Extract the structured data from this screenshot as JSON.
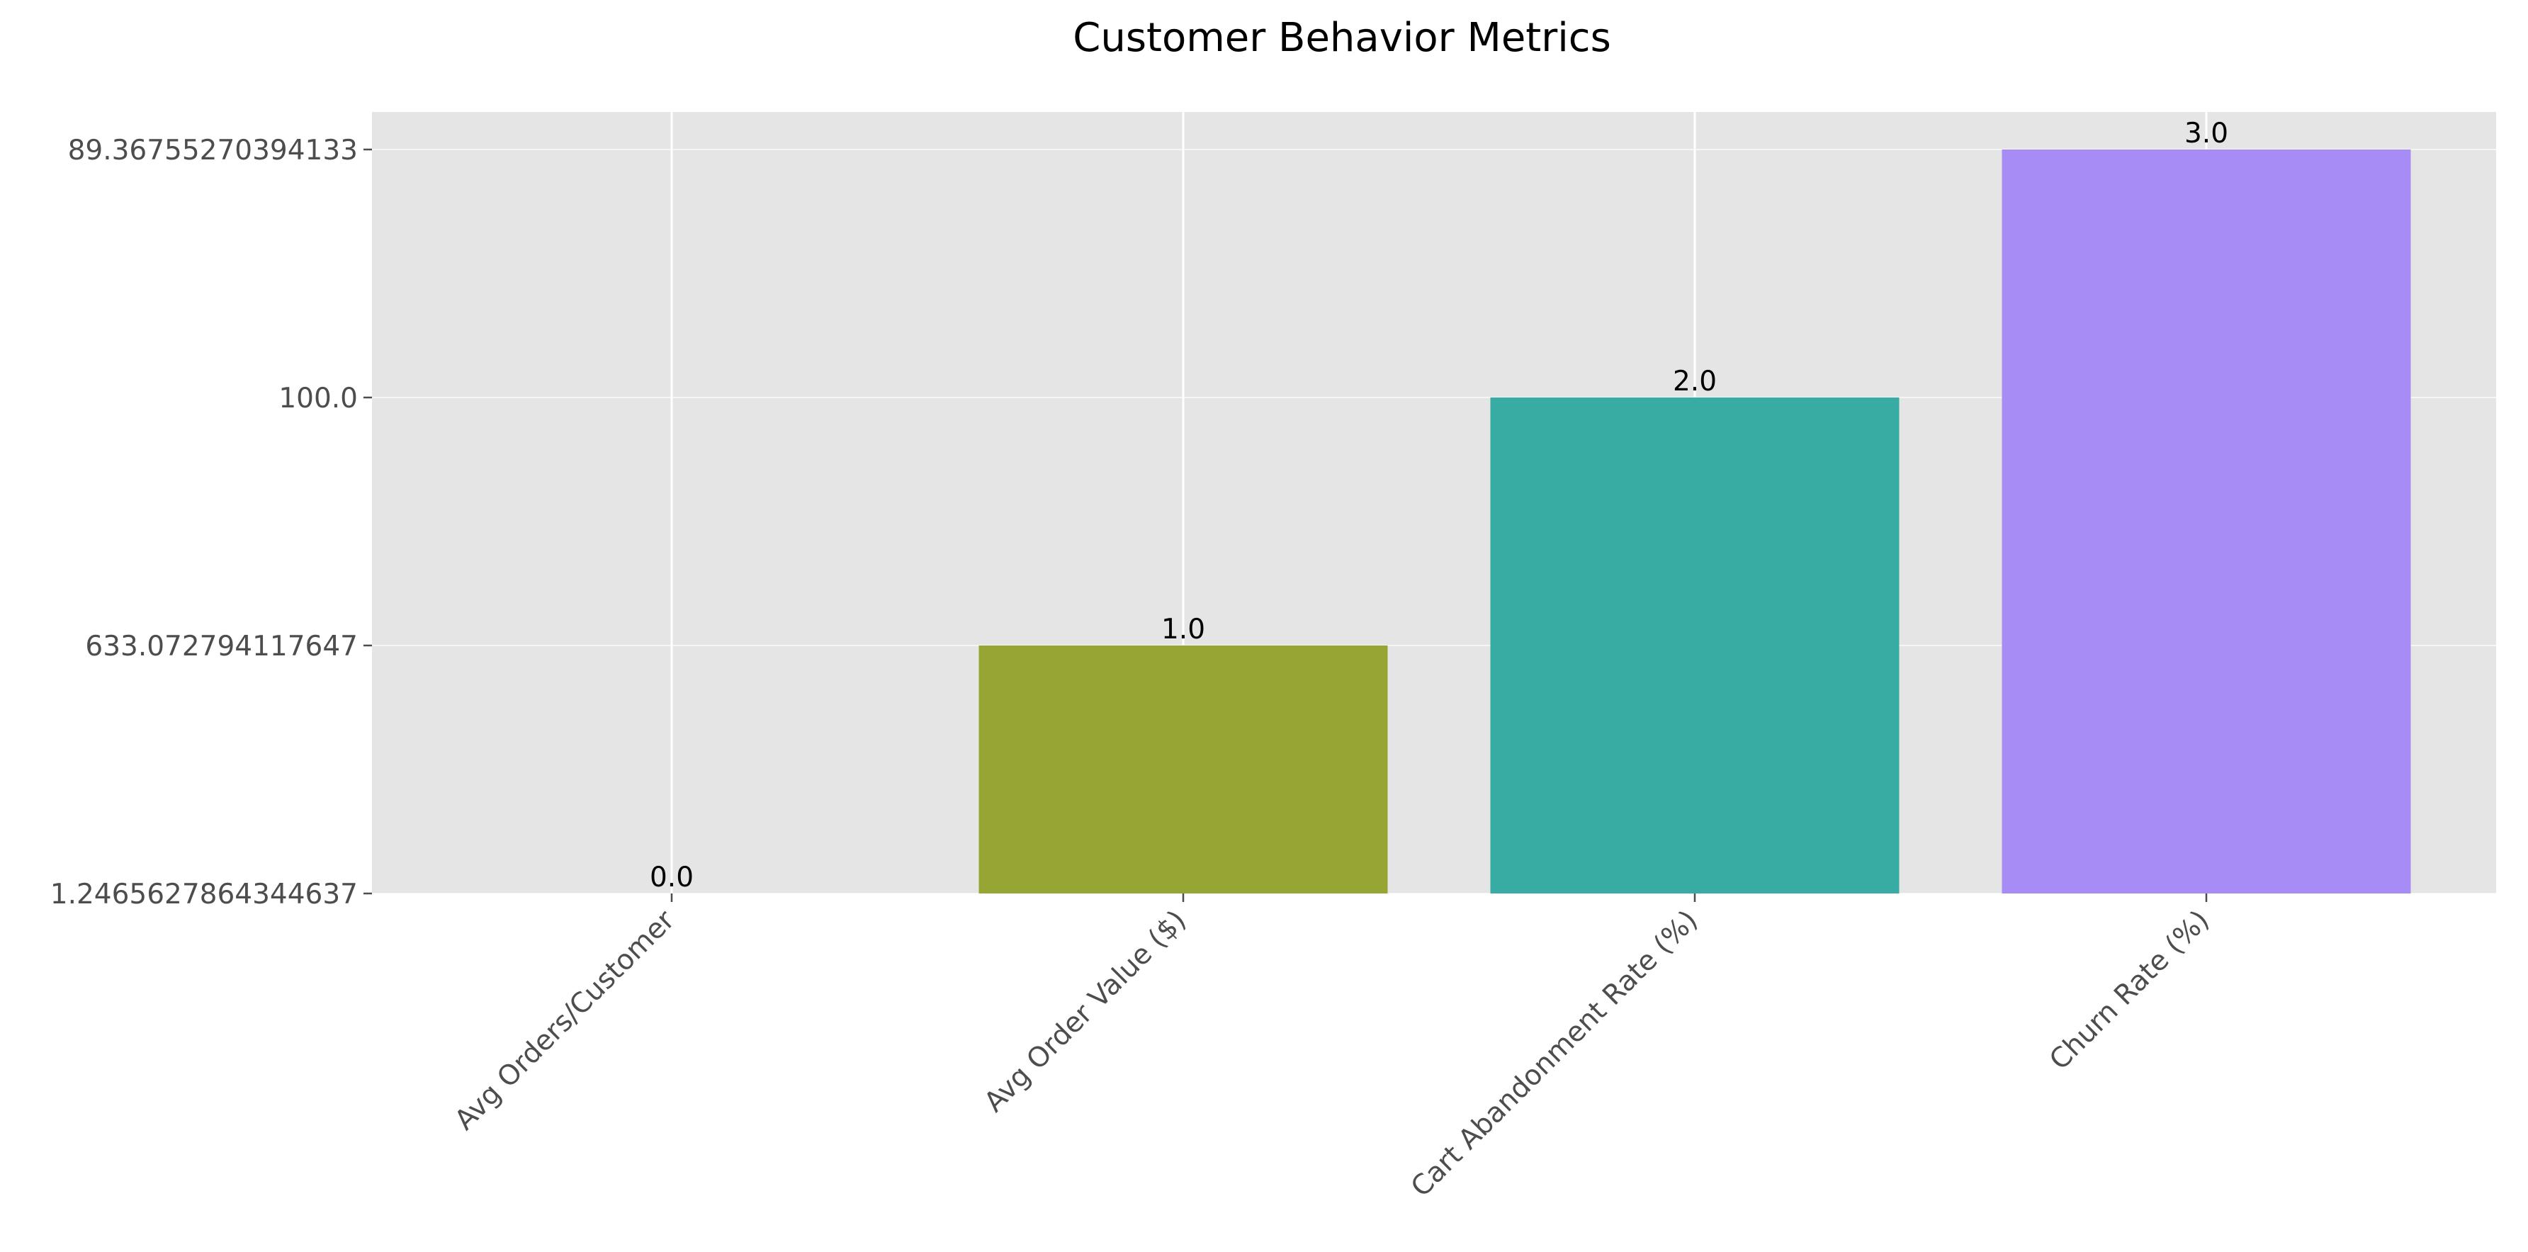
{
  "chart_data": {
    "type": "bar",
    "title": "Customer Behavior Metrics",
    "xlabel": "",
    "ylabel": "",
    "categories": [
      "Avg Orders/Customer",
      "Avg Order Value ($)",
      "Cart Abandonment Rate (%)",
      "Churn Rate (%)"
    ],
    "values": [
      0.0,
      1.0,
      2.0,
      3.0
    ],
    "data_labels": [
      "0.0",
      "1.0",
      "2.0",
      "3.0"
    ],
    "ylim": [
      0,
      3.15
    ],
    "yticks": [
      {
        "value": 0,
        "label": "1.2465627864344637"
      },
      {
        "value": 1,
        "label": "633.072794117647"
      },
      {
        "value": 2,
        "label": "100.0"
      },
      {
        "value": 3,
        "label": "89.36755270394133"
      }
    ],
    "colors": [
      "#E24A33",
      "#97A534",
      "#38ABA2",
      "#A68CF4"
    ],
    "background": "#E5E5E5",
    "grid": true,
    "legend": "none"
  }
}
